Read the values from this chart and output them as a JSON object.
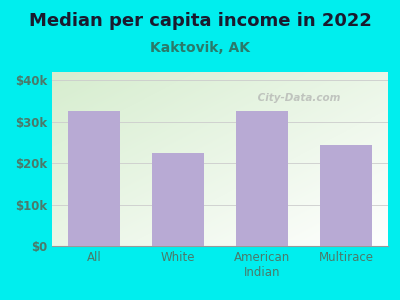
{
  "title": "Median per capita income in 2022",
  "subtitle": "Kaktovik, AK",
  "categories": [
    "All",
    "White",
    "American\nIndian",
    "Multirace"
  ],
  "values": [
    32500,
    22500,
    32500,
    24500
  ],
  "bar_color": "#b8aad4",
  "figure_bg": "#00EEEE",
  "plot_bg_topleft": "#d8ecd0",
  "plot_bg_bottomright": "#ffffff",
  "title_color": "#1a1a2e",
  "subtitle_color": "#2a7a6a",
  "tick_color": "#4a7a6a",
  "ytick_color": "#4a7a6a",
  "ylim": [
    0,
    42000
  ],
  "yticks": [
    0,
    10000,
    20000,
    30000,
    40000
  ],
  "ytick_labels": [
    "$0",
    "$10k",
    "$20k",
    "$30k",
    "$40k"
  ],
  "watermark": " City-Data.com",
  "title_fontsize": 13,
  "subtitle_fontsize": 10,
  "tick_fontsize": 8.5
}
